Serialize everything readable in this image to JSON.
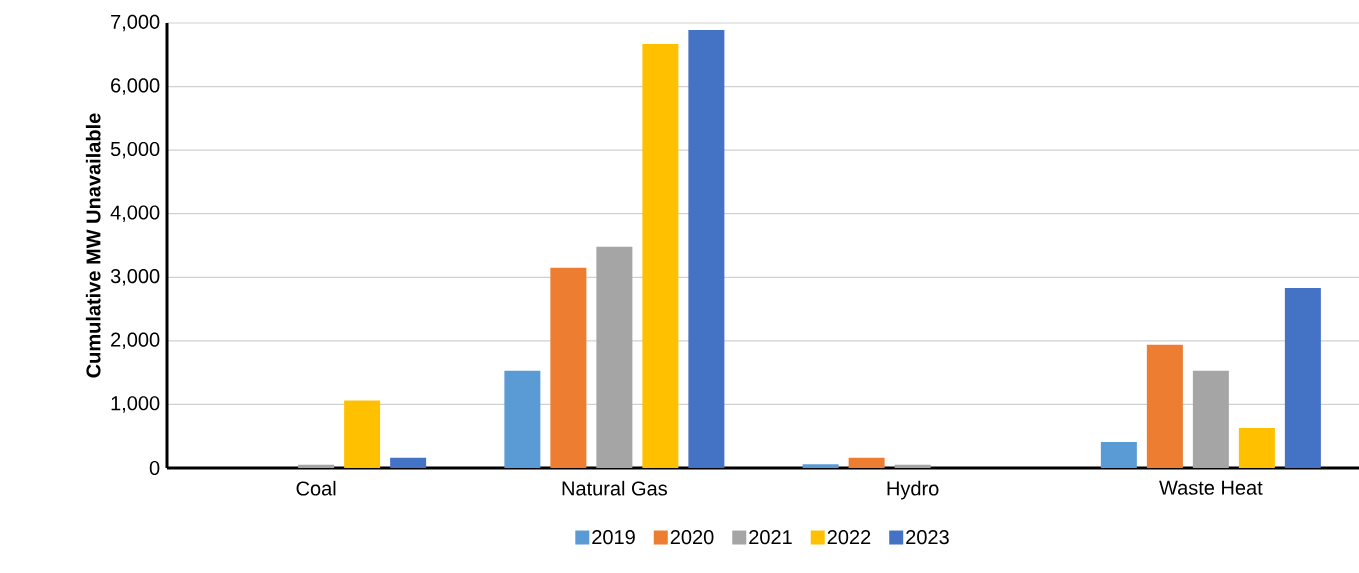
{
  "chart_data": {
    "type": "bar",
    "ylabel": "Cumulative MW Unavailable",
    "categories": [
      "Coal",
      "Natural Gas",
      "Hydro",
      "Waste Heat"
    ],
    "series": [
      {
        "name": "2019",
        "color": "#5b9bd5",
        "values": [
          0,
          1530,
          60,
          410
        ]
      },
      {
        "name": "2020",
        "color": "#ed7d31",
        "values": [
          0,
          3150,
          160,
          1940
        ]
      },
      {
        "name": "2021",
        "color": "#a5a5a5",
        "values": [
          50,
          3480,
          50,
          1530
        ]
      },
      {
        "name": "2022",
        "color": "#ffc000",
        "values": [
          1060,
          6670,
          0,
          630
        ]
      },
      {
        "name": "2023",
        "color": "#4472c4",
        "values": [
          160,
          6890,
          0,
          2830
        ]
      }
    ],
    "ylim": [
      0,
      7000
    ],
    "yticks": [
      {
        "value": 0,
        "label": "0"
      },
      {
        "value": 1000,
        "label": "1,000"
      },
      {
        "value": 2000,
        "label": "2,000"
      },
      {
        "value": 3000,
        "label": "3,000"
      },
      {
        "value": 4000,
        "label": "4,000"
      },
      {
        "value": 5000,
        "label": "5,000"
      },
      {
        "value": 6000,
        "label": "6,000"
      },
      {
        "value": 7000,
        "label": "7,000"
      }
    ],
    "grid": "y",
    "legend": "bottom"
  }
}
